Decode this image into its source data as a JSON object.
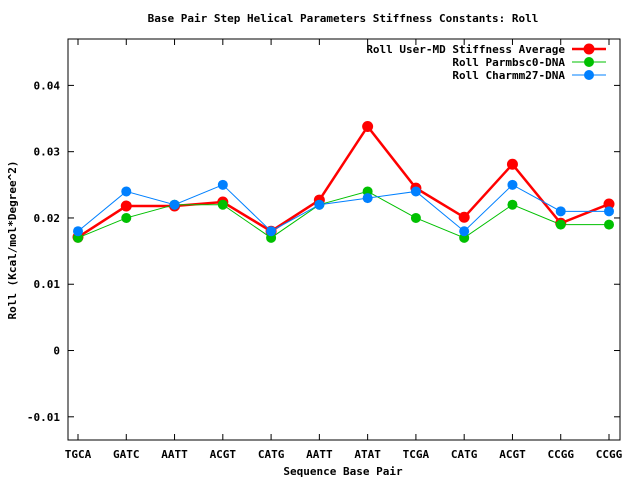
{
  "chart_data": {
    "type": "line",
    "title": "Base Pair Step Helical Parameters Stiffness Constants: Roll",
    "xlabel": "Sequence Base Pair",
    "ylabel": "Roll (Kcal/mol*Degree^2)",
    "categories": [
      "TGCA",
      "GATC",
      "AATT",
      "ACGT",
      "CATG",
      "AATT",
      "ATAT",
      "TCGA",
      "CATG",
      "ACGT",
      "CCGG",
      "CCGG"
    ],
    "yticks": [
      -0.01,
      0,
      0.01,
      0.02,
      0.03,
      0.04
    ],
    "ytick_labels": [
      "-0.01",
      "0",
      "0.01",
      "0.02",
      "0.03",
      "0.04"
    ],
    "ylim": [
      -0.0135,
      0.047
    ],
    "grid": false,
    "legend_position": "top-right",
    "series": [
      {
        "name": "Roll User-MD Stiffness Average",
        "color": "#ff0000",
        "values": [
          0.0171,
          0.0218,
          0.0218,
          0.0224,
          0.018,
          0.0227,
          0.0338,
          0.0245,
          0.0201,
          0.0281,
          0.0192,
          0.0221
        ]
      },
      {
        "name": "Roll Parmbsc0-DNA",
        "color": "#00c000",
        "values": [
          0.017,
          0.02,
          0.022,
          0.022,
          0.017,
          0.022,
          0.024,
          0.02,
          0.017,
          0.022,
          0.019,
          0.019
        ]
      },
      {
        "name": "Roll Charmm27-DNA",
        "color": "#0080ff",
        "values": [
          0.018,
          0.024,
          0.022,
          0.025,
          0.018,
          0.022,
          0.023,
          0.024,
          0.018,
          0.025,
          0.021,
          0.021
        ]
      }
    ]
  }
}
